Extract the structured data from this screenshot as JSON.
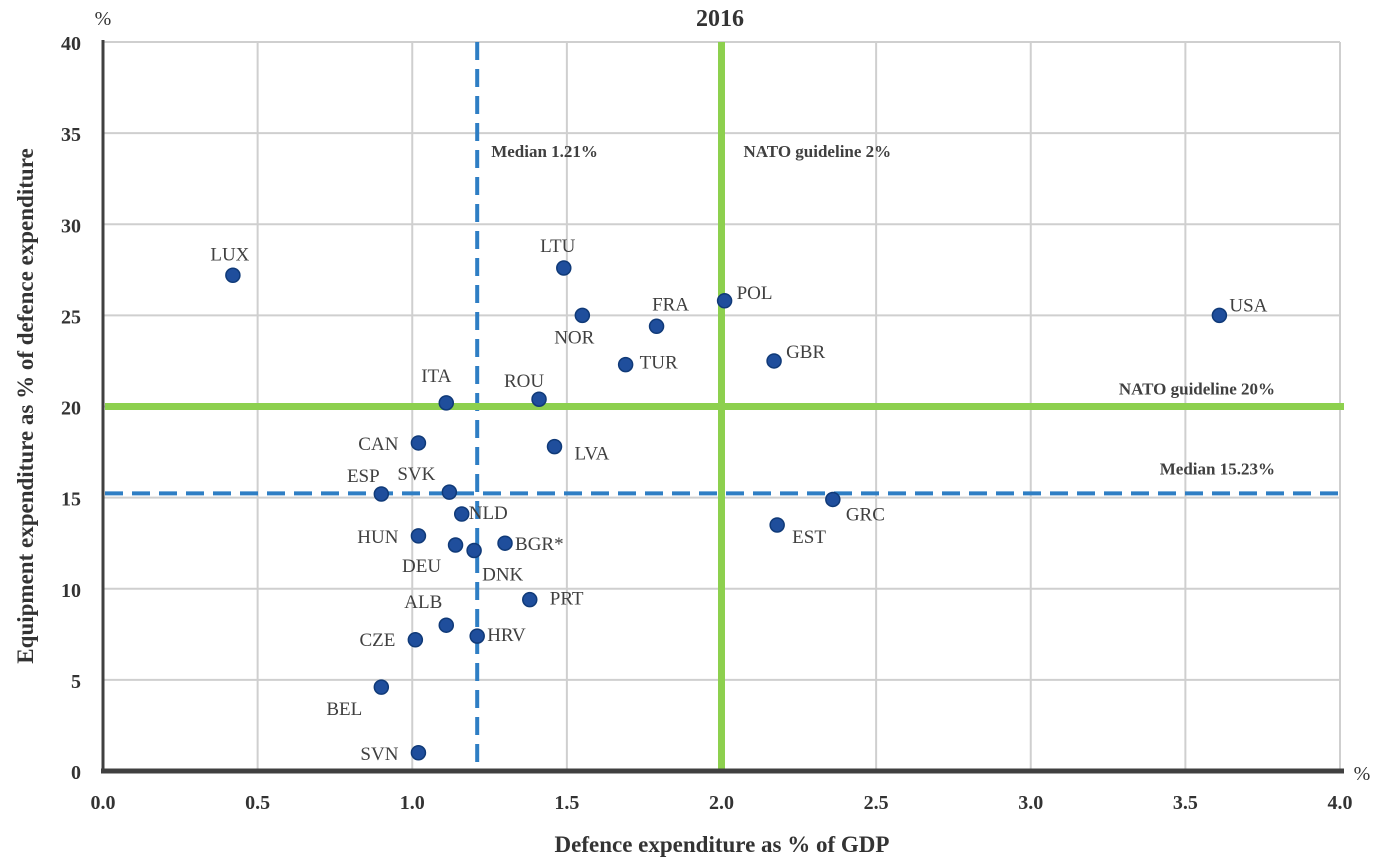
{
  "chart_data": {
    "type": "scatter",
    "title": "2016",
    "xlabel": "Defence expenditure as % of GDP",
    "ylabel": "Equipment expenditure as % of defence expenditure",
    "x_unit": "%",
    "y_unit": "%",
    "xlim": [
      0,
      4.0
    ],
    "ylim": [
      0,
      40
    ],
    "x_ticks": [
      "0.0",
      "0.5",
      "1.0",
      "1.5",
      "2.0",
      "2.5",
      "3.0",
      "3.5",
      "4.0"
    ],
    "y_ticks": [
      "0",
      "5",
      "10",
      "15",
      "20",
      "25",
      "30",
      "35",
      "40"
    ],
    "grid": true,
    "legend": "none",
    "point_color": "#1f4e9c",
    "points": [
      {
        "label": "LUX",
        "x": 0.42,
        "y": 27.2
      },
      {
        "label": "LTU",
        "x": 1.49,
        "y": 27.6
      },
      {
        "label": "POL",
        "x": 2.01,
        "y": 25.8
      },
      {
        "label": "USA",
        "x": 3.61,
        "y": 25.0
      },
      {
        "label": "NOR",
        "x": 1.55,
        "y": 25.0
      },
      {
        "label": "FRA",
        "x": 1.79,
        "y": 24.4
      },
      {
        "label": "TUR",
        "x": 1.69,
        "y": 22.3
      },
      {
        "label": "GBR",
        "x": 2.17,
        "y": 22.5
      },
      {
        "label": "ITA",
        "x": 1.11,
        "y": 20.2
      },
      {
        "label": "ROU",
        "x": 1.41,
        "y": 20.4
      },
      {
        "label": "CAN",
        "x": 1.02,
        "y": 18.0
      },
      {
        "label": "LVA",
        "x": 1.46,
        "y": 17.8
      },
      {
        "label": "ESP",
        "x": 0.9,
        "y": 15.2
      },
      {
        "label": "SVK",
        "x": 1.12,
        "y": 15.3
      },
      {
        "label": "GRC",
        "x": 2.36,
        "y": 14.9
      },
      {
        "label": "NLD",
        "x": 1.16,
        "y": 14.1
      },
      {
        "label": "EST",
        "x": 2.18,
        "y": 13.5
      },
      {
        "label": "HUN",
        "x": 1.02,
        "y": 12.9
      },
      {
        "label": "BGR*",
        "x": 1.3,
        "y": 12.5
      },
      {
        "label": "DEU",
        "x": 1.14,
        "y": 12.4
      },
      {
        "label": "DNK",
        "x": 1.2,
        "y": 12.1
      },
      {
        "label": "PRT",
        "x": 1.38,
        "y": 9.4
      },
      {
        "label": "ALB",
        "x": 1.11,
        "y": 8.0
      },
      {
        "label": "CZE",
        "x": 1.01,
        "y": 7.2
      },
      {
        "label": "HRV",
        "x": 1.21,
        "y": 7.4
      },
      {
        "label": "BEL",
        "x": 0.9,
        "y": 4.6
      },
      {
        "label": "SVN",
        "x": 1.02,
        "y": 1.0
      }
    ],
    "reference_lines": [
      {
        "orientation": "vertical",
        "value": 1.21,
        "label": "Median 1.21%",
        "style": "dashed",
        "color": "#2e7ec4"
      },
      {
        "orientation": "horizontal",
        "value": 15.23,
        "label": "Median 15.23%",
        "style": "dashed",
        "color": "#2e7ec4"
      },
      {
        "orientation": "vertical",
        "value": 2.0,
        "label": "NATO guideline 2%",
        "style": "solid",
        "color": "#8dd04e"
      },
      {
        "orientation": "horizontal",
        "value": 20,
        "label": "NATO guideline 20%",
        "style": "solid",
        "color": "#8dd04e"
      }
    ]
  }
}
